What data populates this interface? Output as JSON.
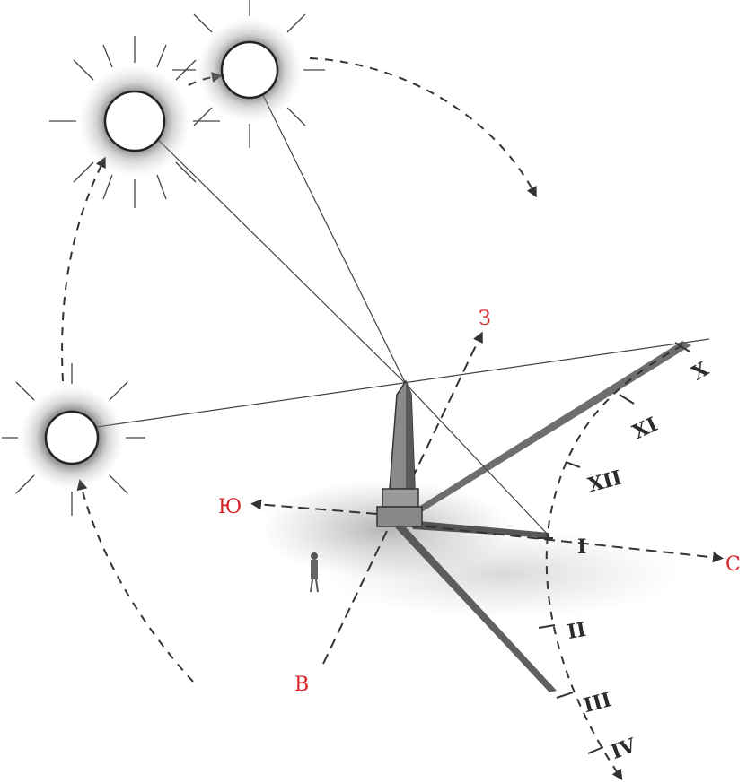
{
  "directions": {
    "north": "С",
    "south": "Ю",
    "east": "В",
    "west": "З"
  },
  "hour_marks": [
    "X",
    "XI",
    "XII",
    "I",
    "II",
    "III",
    "IV"
  ],
  "colors": {
    "direction_labels": "#d8232a",
    "drawing": "#333333"
  },
  "icons": [
    "sun-icon",
    "obelisk-icon",
    "person-icon"
  ]
}
